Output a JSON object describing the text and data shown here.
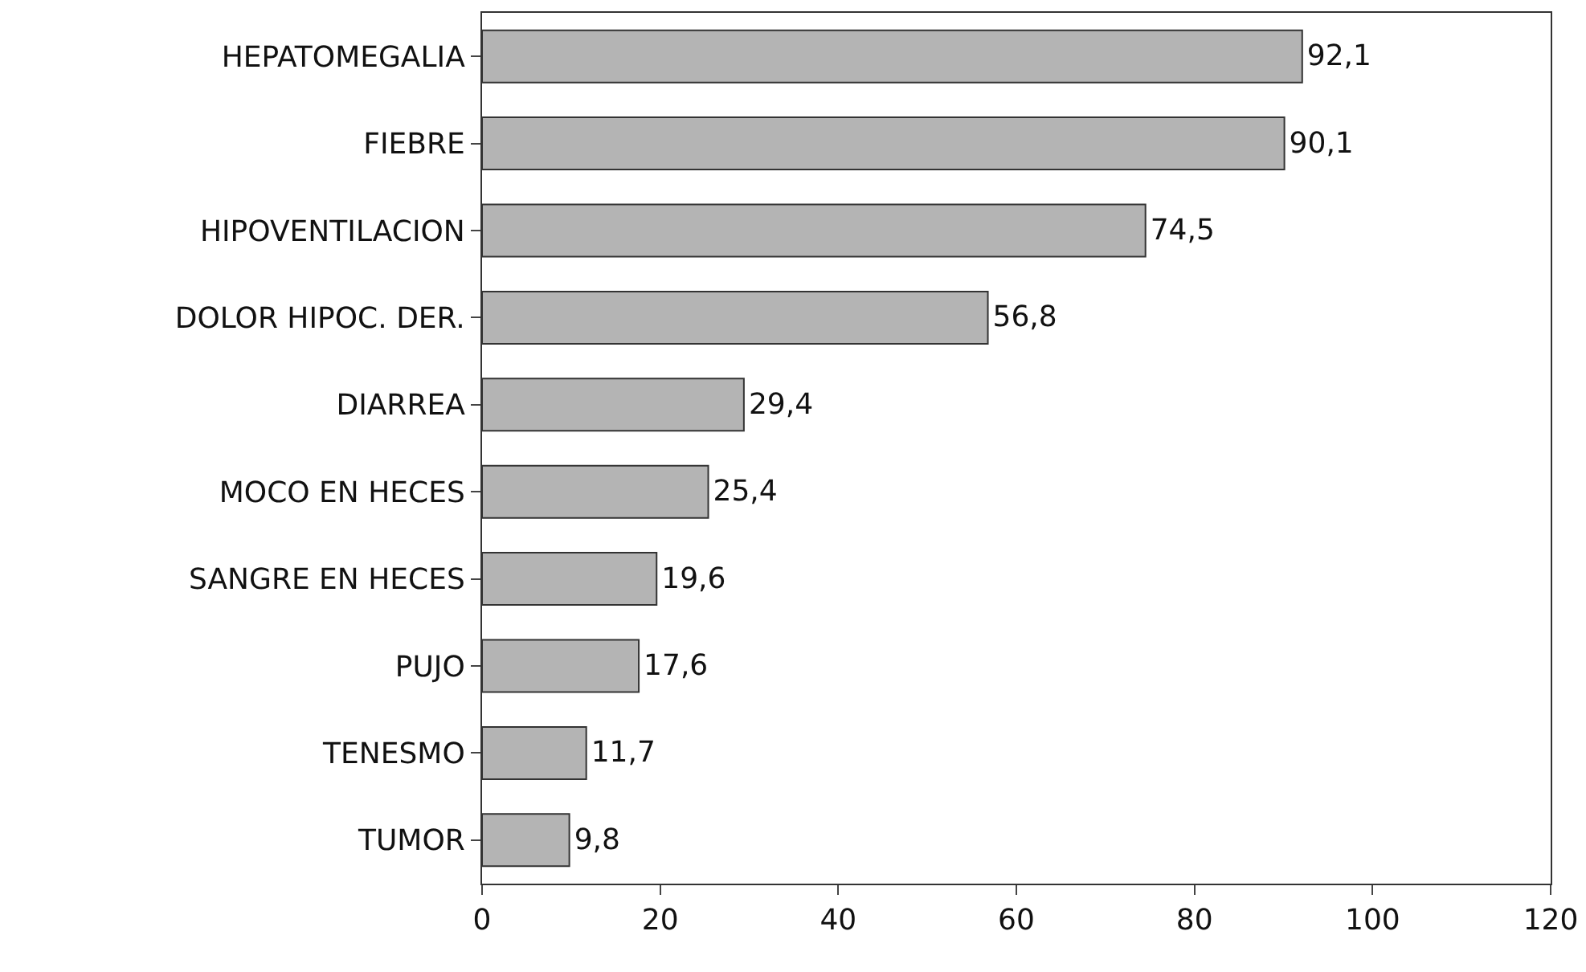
{
  "chart_data": {
    "type": "bar",
    "orientation": "horizontal",
    "categories": [
      "HEPATOMEGALIA",
      "FIEBRE",
      "HIPOVENTILACION",
      "DOLOR HIPOC. DER.",
      "DIARREA",
      "MOCO EN HECES",
      "SANGRE EN HECES",
      "PUJO",
      "TENESMO",
      "TUMOR"
    ],
    "values": [
      92.1,
      90.1,
      74.5,
      56.8,
      29.4,
      25.4,
      19.6,
      17.6,
      11.7,
      9.8
    ],
    "value_labels": [
      "92,1",
      "90,1",
      "74,5",
      "56,8",
      "29,4",
      "25,4",
      "19,6",
      "17,6",
      "11,7",
      "9,8"
    ],
    "color": "#b4b4b4",
    "xlim": [
      0,
      120
    ],
    "xticks": [
      0,
      20,
      40,
      60,
      80,
      100,
      120
    ],
    "grid": false,
    "legend": false
  }
}
